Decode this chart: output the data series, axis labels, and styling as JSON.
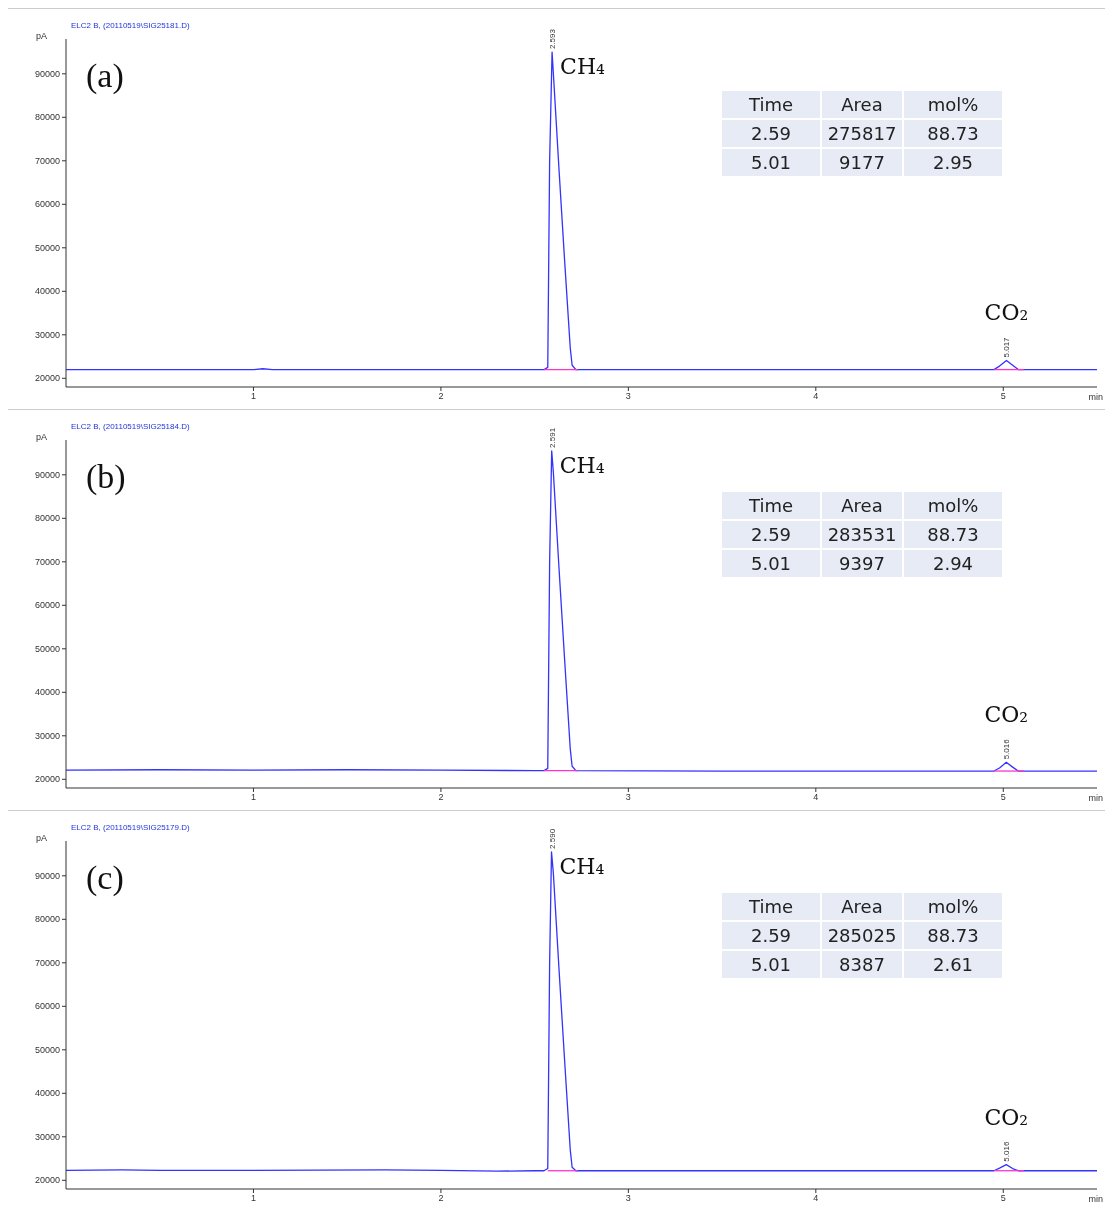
{
  "chart_data": [
    {
      "type": "line",
      "xlabel": "min",
      "ylabel": "pA",
      "xlim": [
        0,
        5.5
      ],
      "xticks": [
        1,
        2,
        3,
        4,
        5
      ],
      "ylim": [
        18000,
        98000
      ],
      "yticks": [
        20000,
        30000,
        40000,
        50000,
        60000,
        70000,
        80000,
        90000
      ],
      "grid": false,
      "legend": false,
      "marker": "none",
      "line_style": "solid",
      "annotations": [
        "ELC2 B, (20110519\\SIG25181.D)",
        "(a)",
        "Time",
        "Area",
        "mol%",
        "2.59",
        "275817",
        "88.73",
        "5.01",
        "9177",
        "2.95",
        {
          "text": "CH₄",
          "x": 2.593,
          "y": 95000
        },
        {
          "text": "2.593",
          "x": 2.593,
          "y": 95000
        },
        {
          "text": "CO₂",
          "x": 5.017,
          "y": 24100
        },
        {
          "text": "5.017",
          "x": 5.017,
          "y": 24100
        }
      ],
      "series": [
        {
          "color": "#3333ff",
          "x": [
            0,
            1.0,
            1.05,
            1.1,
            2.5,
            2.55,
            2.57,
            2.58,
            2.593,
            2.6,
            2.63,
            2.66,
            2.69,
            2.7,
            2.72,
            4.95,
            4.98,
            5.017,
            5.05,
            5.08,
            5.5
          ],
          "values": [
            22000,
            22000,
            22200,
            22000,
            22000,
            22000,
            22500,
            70000,
            95000,
            90000,
            68000,
            47000,
            27000,
            23000,
            22000,
            22000,
            22800,
            24100,
            23000,
            22000,
            22000
          ]
        },
        {
          "color": "#ff33cc",
          "x": [
            2.55,
            2.73
          ],
          "values": [
            22000,
            22000
          ]
        },
        {
          "color": "#ff33cc",
          "x": [
            4.95,
            5.11
          ],
          "values": [
            22000,
            22000
          ]
        }
      ]
    },
    {
      "type": "line",
      "xlabel": "min",
      "ylabel": "pA",
      "xlim": [
        0,
        5.5
      ],
      "xticks": [
        1,
        2,
        3,
        4,
        5
      ],
      "ylim": [
        18000,
        98000
      ],
      "yticks": [
        20000,
        30000,
        40000,
        50000,
        60000,
        70000,
        80000,
        90000
      ],
      "grid": false,
      "legend": false,
      "marker": "none",
      "line_style": "solid",
      "annotations": [
        "ELC2 B, (20110519\\SIG25184.D)",
        "(b)",
        "Time",
        "Area",
        "mol%",
        "2.59",
        "283531",
        "88.73",
        "5.01",
        "9397",
        "2.94",
        {
          "text": "CH₄",
          "x": 2.591,
          "y": 95500
        },
        {
          "text": "2.591",
          "x": 2.591,
          "y": 95500
        },
        {
          "text": "CO₂",
          "x": 5.016,
          "y": 23900
        },
        {
          "text": "5.016",
          "x": 5.016,
          "y": 23900
        }
      ],
      "series": [
        {
          "color": "#3333ff",
          "x": [
            0,
            0.5,
            1.0,
            1.5,
            2.0,
            2.5,
            2.55,
            2.57,
            2.58,
            2.591,
            2.6,
            2.63,
            2.66,
            2.69,
            2.7,
            2.72,
            3.5,
            4.4,
            4.95,
            4.98,
            5.016,
            5.05,
            5.08,
            5.5
          ],
          "values": [
            22100,
            22200,
            22100,
            22200,
            22100,
            22000,
            22000,
            22500,
            70000,
            95500,
            90500,
            68500,
            47500,
            27000,
            23000,
            22000,
            21900,
            21900,
            21900,
            22600,
            23900,
            22800,
            21900,
            21900
          ]
        },
        {
          "color": "#ff33cc",
          "x": [
            2.55,
            2.73
          ],
          "values": [
            22000,
            22000
          ]
        },
        {
          "color": "#ff33cc",
          "x": [
            4.95,
            5.11
          ],
          "values": [
            21900,
            21900
          ]
        }
      ]
    },
    {
      "type": "line",
      "xlabel": "min",
      "ylabel": "pA",
      "xlim": [
        0,
        5.5
      ],
      "xticks": [
        1,
        2,
        3,
        4,
        5
      ],
      "ylim": [
        18000,
        98000
      ],
      "yticks": [
        20000,
        30000,
        40000,
        50000,
        60000,
        70000,
        80000,
        90000
      ],
      "grid": false,
      "legend": false,
      "marker": "none",
      "line_style": "solid",
      "annotations": [
        "ELC2 B, (20110519\\SIG25179.D)",
        "(c)",
        "Time",
        "Area",
        "mol%",
        "2.59",
        "285025",
        "88.73",
        "5.01",
        "8387",
        "2.61",
        {
          "text": "CH₄",
          "x": 2.59,
          "y": 95500
        },
        {
          "text": "2.590",
          "x": 2.59,
          "y": 95500
        },
        {
          "text": "CO₂",
          "x": 5.016,
          "y": 23600
        },
        {
          "text": "5.016",
          "x": 5.016,
          "y": 23600
        }
      ],
      "series": [
        {
          "color": "#3333ff",
          "x": [
            0,
            0.3,
            0.5,
            1.0,
            1.7,
            2.0,
            2.3,
            2.5,
            2.55,
            2.57,
            2.58,
            2.59,
            2.6,
            2.63,
            2.66,
            2.69,
            2.7,
            2.72,
            3.5,
            4.4,
            4.95,
            4.98,
            5.016,
            5.05,
            5.08,
            5.5
          ],
          "values": [
            22300,
            22400,
            22300,
            22300,
            22400,
            22300,
            22100,
            22200,
            22200,
            22700,
            70000,
            95500,
            90500,
            68500,
            47500,
            27000,
            23000,
            22200,
            22200,
            22200,
            22200,
            22800,
            23600,
            22700,
            22200,
            22200
          ]
        },
        {
          "color": "#ff33cc",
          "x": [
            2.57,
            2.73
          ],
          "values": [
            22200,
            22200
          ]
        },
        {
          "color": "#ff33cc",
          "x": [
            4.95,
            5.11
          ],
          "values": [
            22200,
            22200
          ]
        }
      ]
    }
  ]
}
